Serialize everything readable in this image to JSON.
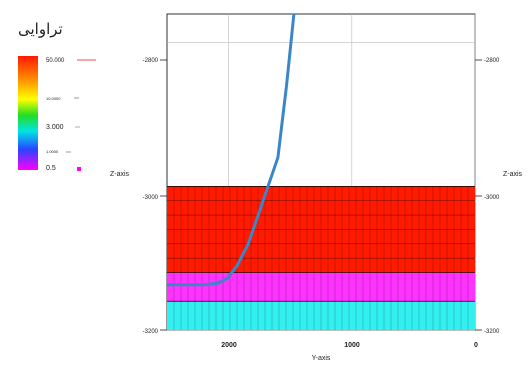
{
  "legend": {
    "title": "تراوایی",
    "entries": [
      "50.000",
      "10.0000",
      "3.000",
      "1.0000",
      "0.5"
    ],
    "colors": {
      "red": "#ff1a00",
      "orange": "#ff8a00",
      "yellow": "#ffff00",
      "green": "#22dd22",
      "cyan": "#00e5e5",
      "blue": "#2a44ff",
      "magenta": "#ff00ff",
      "line": "#ff6a6a",
      "marker": "#ff00ff"
    }
  },
  "chart_data": {
    "type": "heatmap",
    "xlabel": "Y-axis",
    "ylabel": "Z-axis",
    "xlim": [
      2500,
      0
    ],
    "ylim": [
      -3200,
      -2760
    ],
    "x_ticks": [
      "2000",
      "1000",
      "0"
    ],
    "y_ticks": [
      "-2800",
      "-3000",
      "-3200"
    ],
    "x_tick_values": [
      2000,
      1000,
      0
    ],
    "y_tick_values": [
      -2800,
      -3000,
      -3200
    ],
    "layers": [
      {
        "z_top": -3000,
        "z_bottom": -3120,
        "color": "#ff1a00"
      },
      {
        "z_top": -3120,
        "z_bottom": -3160,
        "color": "#ff33ff"
      },
      {
        "z_top": -3160,
        "z_bottom": -3200,
        "color": "#33f0f0"
      }
    ],
    "well_path": {
      "color": "#3b86c8",
      "y": [
        1470,
        1530,
        1600,
        1680,
        1760,
        1840,
        1930,
        2010,
        2090,
        2200,
        2350,
        2500
      ],
      "z": [
        -2760,
        -2860,
        -2960,
        -3000,
        -3040,
        -3080,
        -3110,
        -3128,
        -3135,
        -3137,
        -3137,
        -3137
      ]
    },
    "corner_labels": [
      "",
      "",
      ""
    ]
  }
}
